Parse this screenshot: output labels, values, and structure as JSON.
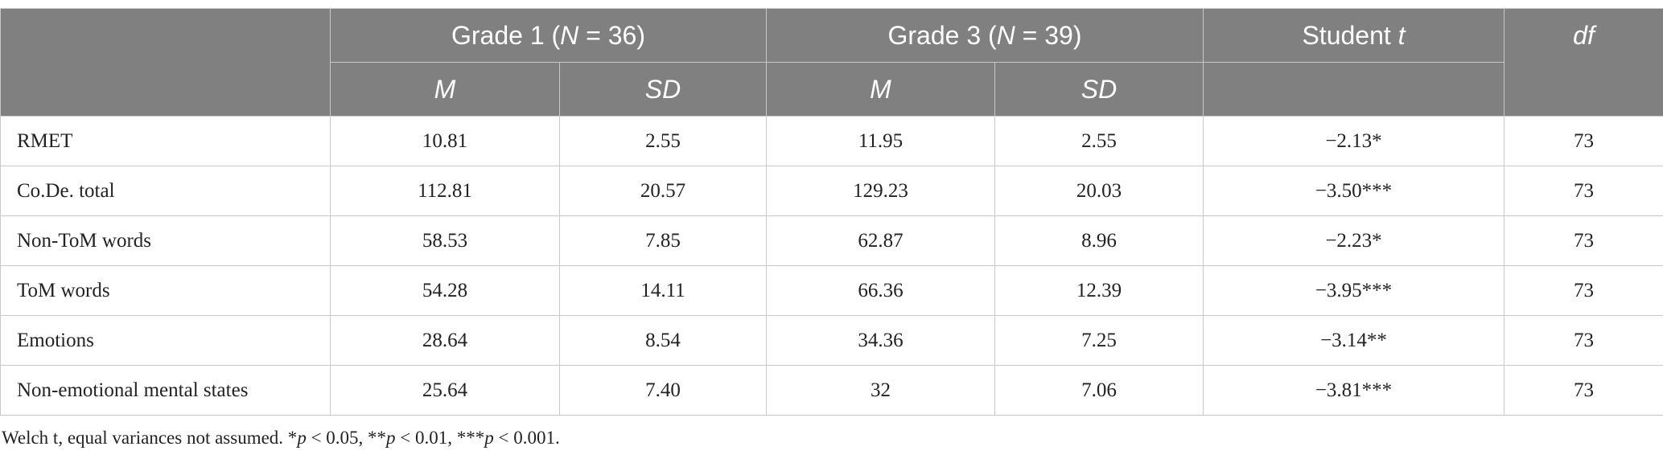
{
  "table": {
    "header_top": [
      [],
      [
        "Grade 1 (",
        "N",
        " = 36)"
      ],
      [
        "Grade 3 (",
        "N",
        " = 39)"
      ],
      [
        "Student ",
        "t"
      ],
      [
        "",
        "df"
      ]
    ],
    "header_sub": [
      [],
      [
        "",
        "M"
      ],
      [
        "",
        "SD"
      ],
      [
        "",
        "M"
      ],
      [
        "",
        "SD"
      ],
      [],
      []
    ],
    "rows": [
      [
        "RMET",
        "10.81",
        "2.55",
        "11.95",
        "2.55",
        "−2.13*",
        "73"
      ],
      [
        "Co.De. total",
        "112.81",
        "20.57",
        "129.23",
        "20.03",
        "−3.50***",
        "73"
      ],
      [
        "Non-ToM words",
        "58.53",
        "7.85",
        "62.87",
        "8.96",
        "−2.23*",
        "73"
      ],
      [
        "ToM words",
        "54.28",
        "14.11",
        "66.36",
        "12.39",
        "−3.95***",
        "73"
      ],
      [
        "Emotions",
        "28.64",
        "8.54",
        "34.36",
        "7.25",
        "−3.14**",
        "73"
      ],
      [
        "Non-emotional mental states",
        "25.64",
        "7.40",
        "32",
        "7.06",
        "−3.81***",
        "73"
      ]
    ],
    "footnote": [
      "Welch t, equal variances not assumed. *",
      "p",
      " < 0.05, **",
      "p",
      " < 0.01, ***",
      "p",
      " < 0.001."
    ]
  }
}
